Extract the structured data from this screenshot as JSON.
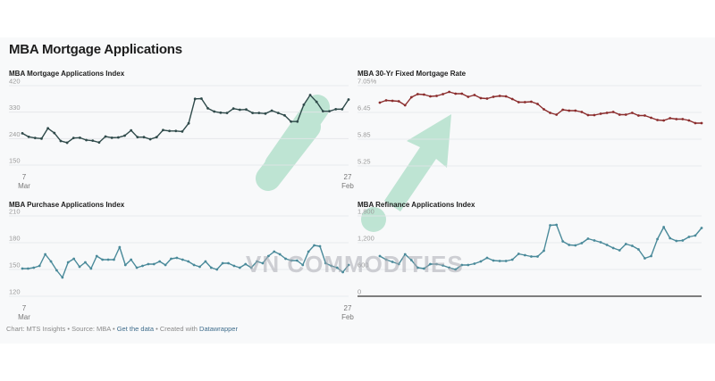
{
  "page": {
    "title": "MBA Mortgage Applications",
    "footer": {
      "chart_credit": "Chart: MTS Insights",
      "source": "Source: MBA",
      "get_data_link": "Get the data",
      "created_with_prefix": "Created with",
      "created_with_link": "Datawrapper",
      "separator": "•"
    },
    "watermark": "VN COMMODITIES",
    "colors": {
      "background": "#f8f9fa",
      "gridline": "#e3e5e8",
      "axis_text": "#9a9a9a",
      "composite_line": "#2f4a4a",
      "rate_line": "#8b2d2d",
      "purchase_line": "#4a8a9a",
      "refi_line": "#4a8a9a",
      "watermark_green": "#8fd3b4"
    }
  },
  "chart_data": [
    {
      "type": "line",
      "title": "MBA Mortgage Applications Index",
      "xlabel": "",
      "ylabel": "",
      "ylim": [
        150,
        420
      ],
      "yticks": [
        "420",
        "330",
        "240",
        "150"
      ],
      "xticks": [
        {
          "day": "7",
          "month": "Mar"
        },
        {
          "day": "27",
          "month": "Feb"
        }
      ],
      "grid": true,
      "color": "#2f4a4a",
      "values": [
        258,
        246,
        242,
        240,
        275,
        259,
        232,
        226,
        242,
        243,
        235,
        233,
        227,
        247,
        243,
        244,
        250,
        268,
        245,
        245,
        238,
        245,
        269,
        266,
        266,
        264,
        292,
        375,
        376,
        343,
        332,
        328,
        327,
        342,
        338,
        339,
        327,
        327,
        325,
        335,
        327,
        319,
        298,
        298,
        355,
        388,
        365,
        333,
        333,
        340,
        340,
        373
      ]
    },
    {
      "type": "line",
      "title": "MBA 30-Yr Fixed Mortgage Rate",
      "xlabel": "",
      "ylabel": "",
      "ylim": [
        5.25,
        7.05
      ],
      "yticks": [
        "7.05%",
        "6.45",
        "5.85",
        "5.25"
      ],
      "grid": true,
      "color": "#8b2d2d",
      "values": [
        6.67,
        6.72,
        6.71,
        6.7,
        6.61,
        6.79,
        6.86,
        6.85,
        6.81,
        6.82,
        6.86,
        6.91,
        6.87,
        6.87,
        6.8,
        6.84,
        6.77,
        6.76,
        6.8,
        6.82,
        6.81,
        6.75,
        6.68,
        6.68,
        6.69,
        6.64,
        6.52,
        6.44,
        6.4,
        6.51,
        6.49,
        6.49,
        6.46,
        6.39,
        6.39,
        6.42,
        6.44,
        6.46,
        6.4,
        6.4,
        6.44,
        6.38,
        6.38,
        6.33,
        6.28,
        6.27,
        6.32,
        6.3,
        6.3,
        6.27,
        6.21,
        6.21
      ]
    },
    {
      "type": "line",
      "title": "MBA Purchase Applications Index",
      "xlabel": "",
      "ylabel": "",
      "ylim": [
        120,
        210
      ],
      "yticks": [
        "210",
        "180",
        "150",
        "120"
      ],
      "xticks": [
        {
          "day": "7",
          "month": "Mar"
        },
        {
          "day": "27",
          "month": "Feb"
        }
      ],
      "grid": true,
      "color": "#4a8a9a",
      "values": [
        151,
        151,
        152,
        154,
        167,
        159,
        149,
        141,
        158,
        162,
        153,
        158,
        151,
        165,
        161,
        161,
        161,
        175,
        155,
        161,
        152,
        154,
        156,
        156,
        159,
        155,
        162,
        163,
        161,
        159,
        155,
        153,
        159,
        152,
        150,
        157,
        157,
        154,
        152,
        156,
        152,
        159,
        157,
        165,
        170,
        167,
        162,
        160,
        160,
        155,
        170,
        177,
        176,
        157,
        154,
        152,
        147,
        155
      ]
    },
    {
      "type": "line",
      "title": "MBA Refinance Applications Index",
      "xlabel": "",
      "ylabel": "",
      "ylim": [
        0,
        1800
      ],
      "yticks": [
        "1,800",
        "1,200",
        "600",
        "0"
      ],
      "grid": true,
      "color": "#4a8a9a",
      "values": [
        900,
        820,
        770,
        720,
        940,
        810,
        640,
        620,
        720,
        720,
        690,
        640,
        600,
        700,
        700,
        730,
        780,
        860,
        800,
        790,
        790,
        820,
        950,
        920,
        890,
        890,
        1020,
        1590,
        1600,
        1230,
        1150,
        1140,
        1190,
        1290,
        1250,
        1210,
        1150,
        1080,
        1030,
        1170,
        1130,
        1050,
        850,
        900,
        1280,
        1550,
        1300,
        1240,
        1250,
        1330,
        1360,
        1530
      ]
    }
  ]
}
